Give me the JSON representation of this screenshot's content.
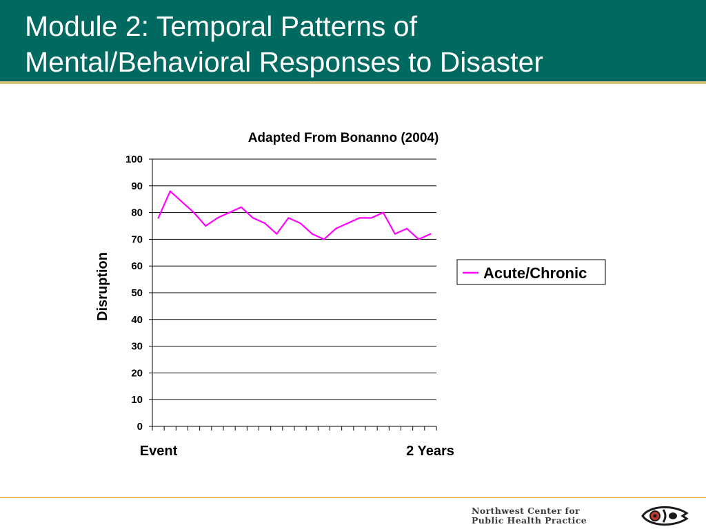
{
  "slide": {
    "title_line1": "Module 2: Temporal Patterns of",
    "title_line2": "Mental/Behavioral Responses to Disaster"
  },
  "colors": {
    "band": "#006a60",
    "series": "#ff00ff",
    "footer_rule": "#e8a23a"
  },
  "chart_data": {
    "type": "line",
    "title": "Adapted From Bonanno (2004)",
    "ylabel": "Disruption",
    "xlabel": "",
    "x_start_label": "Event",
    "x_end_label": "2 Years",
    "ylim": [
      0,
      100
    ],
    "yticks": [
      "0",
      "10",
      "20",
      "30",
      "40",
      "50",
      "60",
      "70",
      "80",
      "90",
      "100"
    ],
    "grid": "horizontal",
    "legend_position": "right",
    "series": [
      {
        "name": "Acute/Chronic",
        "values": [
          78,
          88,
          84,
          80,
          75,
          78,
          80,
          82,
          78,
          76,
          72,
          78,
          76,
          72,
          70,
          74,
          76,
          78,
          78,
          80,
          72,
          74,
          70,
          72
        ]
      }
    ]
  },
  "footer": {
    "org_line1": "Northwest Center for",
    "org_line2": "Public Health Practice",
    "logo_icon": "salmon-logo-icon"
  }
}
